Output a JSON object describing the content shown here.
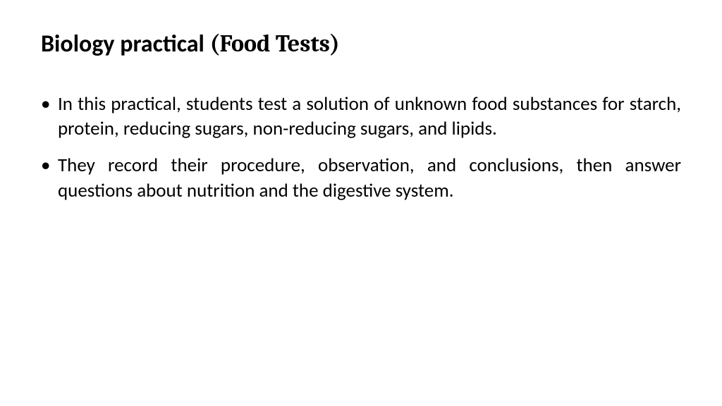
{
  "slide": {
    "background_color": "#ffffff",
    "text_color": "#000000",
    "title": {
      "main": "Biology practical ",
      "sub": "(Food Tests)",
      "main_font": "Calibri",
      "sub_font": "Cambria",
      "fontsize": 34
    },
    "bullets": {
      "fontsize": 27,
      "alignment": "justify",
      "items": [
        "In this practical, students test a solution of unknown food substances for starch, protein, reducing sugars, non-reducing sugars, and lipids.",
        "They record their procedure, observation, and conclusions, then answer questions about nutrition and the digestive system."
      ]
    }
  }
}
